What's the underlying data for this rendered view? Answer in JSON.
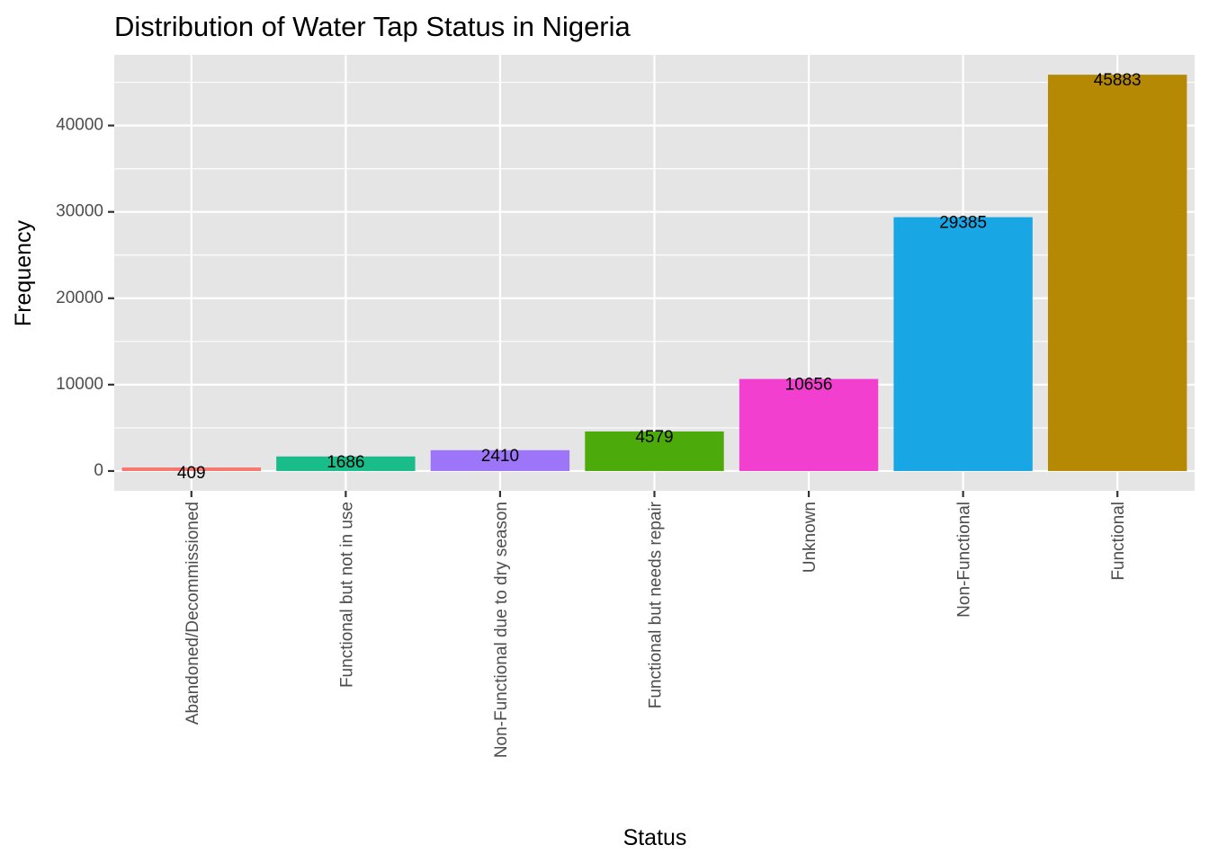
{
  "chart_data": {
    "type": "bar",
    "title": "Distribution of Water Tap Status in Nigeria",
    "xlabel": "Status",
    "ylabel": "Frequency",
    "categories": [
      "Abandoned/Decommissioned",
      "Functional but not in use",
      "Non-Functional due to dry season",
      "Functional but needs repair",
      "Unknown",
      "Non-Functional",
      "Functional"
    ],
    "values": [
      409,
      1686,
      2410,
      4579,
      10656,
      29385,
      45883
    ],
    "colors": [
      "#F8766D",
      "#1ABC8A",
      "#9D75F8",
      "#4DAA0B",
      "#F33FD0",
      "#19A6E4",
      "#B68905"
    ],
    "ylim": [
      -2294,
      48180
    ],
    "yticks": [
      0,
      10000,
      20000,
      30000,
      40000
    ],
    "ytick_labels": [
      "0",
      "10000",
      "20000",
      "30000",
      "40000"
    ],
    "panel_background": "#E5E5E5",
    "grid_color": "#FFFFFF",
    "grid": true,
    "legend": "none"
  }
}
